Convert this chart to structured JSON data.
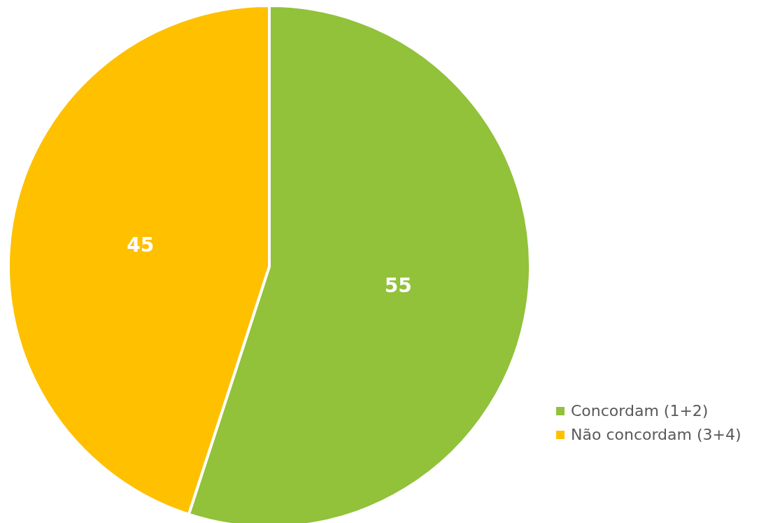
{
  "chart_data": {
    "type": "pie",
    "categories": [
      "Concordam (1+2)",
      "Não concordam (3+4)"
    ],
    "values": [
      55,
      45
    ],
    "colors": [
      "#92c13a",
      "#ffc000"
    ],
    "data_labels": true,
    "legend": "bottom right"
  }
}
